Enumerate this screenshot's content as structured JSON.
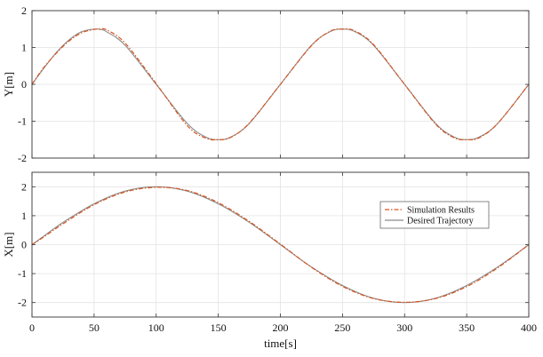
{
  "chart_data": [
    {
      "type": "line",
      "title": "",
      "xlabel": "",
      "ylabel": "Y[m]",
      "xlim": [
        0,
        400
      ],
      "ylim": [
        -2,
        2
      ],
      "xticks": [
        0,
        50,
        100,
        150,
        200,
        250,
        300,
        350,
        400
      ],
      "yticks": [
        -2,
        -1,
        0,
        1,
        2
      ],
      "show_xtick_labels": false,
      "grid": true,
      "series": [
        {
          "name": "Simulation Results",
          "color": "#d9541e",
          "style": "dash-dot",
          "x": [
            0,
            5,
            10,
            20,
            30,
            40,
            50,
            55,
            60,
            75,
            100,
            125,
            140,
            150,
            160,
            175,
            200,
            225,
            240,
            250,
            260,
            275,
            300,
            325,
            340,
            350,
            360,
            375,
            400
          ],
          "y": [
            0.0,
            0.25,
            0.48,
            0.86,
            1.18,
            1.4,
            1.49,
            1.5,
            1.48,
            1.12,
            0.02,
            -1.12,
            -1.46,
            -1.5,
            -1.44,
            -1.05,
            0.0,
            1.05,
            1.44,
            1.5,
            1.45,
            1.08,
            0.0,
            -1.08,
            -1.45,
            -1.5,
            -1.45,
            -1.06,
            0.0
          ]
        },
        {
          "name": "Desired Trajectory",
          "color": "#8a8a8a",
          "style": "solid",
          "x": [
            0,
            5,
            10,
            20,
            30,
            40,
            50,
            55,
            60,
            75,
            100,
            125,
            140,
            150,
            160,
            175,
            200,
            225,
            240,
            250,
            260,
            275,
            300,
            325,
            340,
            350,
            360,
            375,
            400
          ],
          "y": [
            0.0,
            0.23,
            0.46,
            0.88,
            1.21,
            1.43,
            1.5,
            1.49,
            1.43,
            1.06,
            0.0,
            -1.06,
            -1.43,
            -1.5,
            -1.43,
            -1.06,
            0.0,
            1.06,
            1.43,
            1.5,
            1.43,
            1.06,
            0.0,
            -1.06,
            -1.43,
            -1.5,
            -1.43,
            -1.06,
            0.0
          ]
        }
      ]
    },
    {
      "type": "line",
      "title": "",
      "xlabel": "time[s]",
      "ylabel": "X[m]",
      "xlim": [
        0,
        400
      ],
      "ylim": [
        -2.5,
        2.5
      ],
      "xticks": [
        0,
        50,
        100,
        150,
        200,
        250,
        300,
        350,
        400
      ],
      "yticks": [
        -2,
        -1,
        0,
        1,
        2
      ],
      "show_xtick_labels": true,
      "grid": true,
      "legend_position": "right",
      "series": [
        {
          "name": "Simulation Results",
          "color": "#d9541e",
          "style": "dash-dot",
          "x": [
            0,
            10,
            25,
            50,
            75,
            100,
            125,
            150,
            175,
            200,
            225,
            250,
            275,
            300,
            325,
            350,
            375,
            400
          ],
          "y": [
            0.0,
            0.28,
            0.72,
            1.38,
            1.82,
            1.98,
            1.87,
            1.45,
            0.8,
            0.02,
            -0.78,
            -1.44,
            -1.86,
            -1.99,
            -1.86,
            -1.45,
            -0.8,
            0.0
          ]
        },
        {
          "name": "Desired Trajectory",
          "color": "#8a8a8a",
          "style": "solid",
          "x": [
            0,
            10,
            25,
            50,
            75,
            100,
            125,
            150,
            175,
            200,
            225,
            250,
            275,
            300,
            325,
            350,
            375,
            400
          ],
          "y": [
            0.0,
            0.31,
            0.77,
            1.41,
            1.85,
            2.0,
            1.85,
            1.41,
            0.77,
            0.0,
            -0.77,
            -1.41,
            -1.85,
            -2.0,
            -1.85,
            -1.41,
            -0.77,
            0.0
          ]
        }
      ]
    }
  ]
}
